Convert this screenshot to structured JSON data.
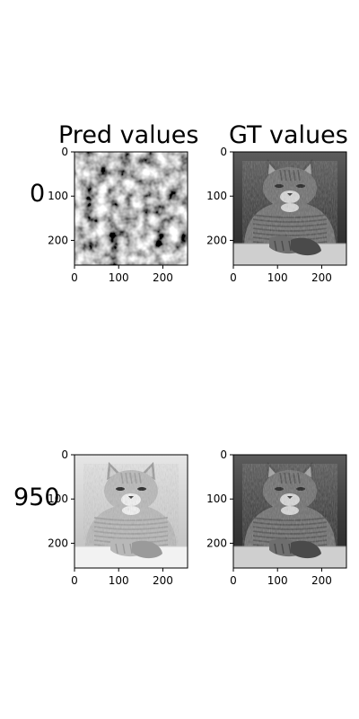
{
  "chart_data": {
    "type": "heatmap",
    "columns": [
      "Pred values",
      "GT values"
    ],
    "rows": [
      "0",
      "950"
    ],
    "panels": [
      {
        "row": "0",
        "column": "Pred values",
        "content": "random grayscale noise",
        "xlim": [
          0,
          256
        ],
        "ylim": [
          256,
          0
        ]
      },
      {
        "row": "0",
        "column": "GT values",
        "content": "grayscale photo of a tabby cat",
        "xlim": [
          0,
          256
        ],
        "ylim": [
          256,
          0
        ]
      },
      {
        "row": "950",
        "column": "Pred values",
        "content": "reconstructed high-contrast grayscale cat photo",
        "xlim": [
          0,
          256
        ],
        "ylim": [
          256,
          0
        ]
      },
      {
        "row": "950",
        "column": "GT values",
        "content": "grayscale photo of a tabby cat",
        "xlim": [
          0,
          256
        ],
        "ylim": [
          256,
          0
        ]
      }
    ],
    "x_ticks": [
      "0",
      "100",
      "200"
    ],
    "y_ticks": [
      "0",
      "100",
      "200"
    ],
    "colormap": "gray"
  }
}
